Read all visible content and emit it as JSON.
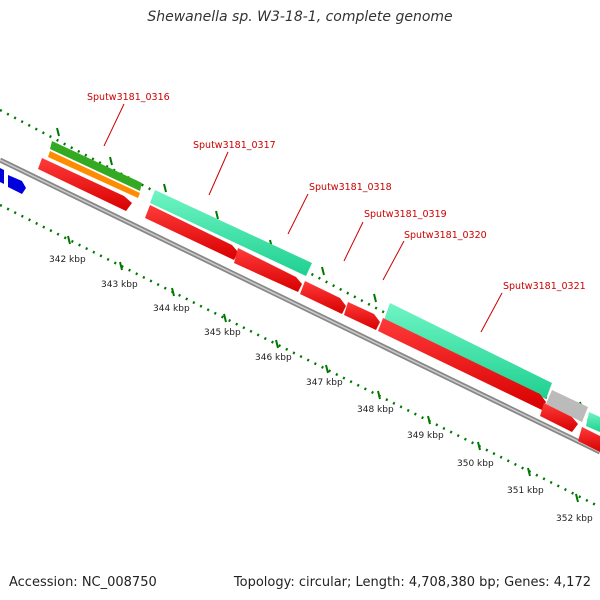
{
  "title": "Shewanella sp. W3-18-1, complete genome",
  "footer": {
    "accession": "Accession: NC_008750",
    "summary": "Topology: circular; Length: 4,708,380 bp; Genes: 4,172"
  },
  "kbp_ticks": [
    "342 kbp",
    "343 kbp",
    "344 kbp",
    "345 kbp",
    "346 kbp",
    "347 kbp",
    "348 kbp",
    "349 kbp",
    "350 kbp",
    "351 kbp",
    "352 kbp"
  ],
  "gene_labels": [
    "Sputw3181_0316",
    "Sputw3181_0317",
    "Sputw3181_0318",
    "Sputw3181_0319",
    "Sputw3181_0320",
    "Sputw3181_0321"
  ],
  "colors": {
    "cds": "#ff0000",
    "gene_cyan": "#2ee8a8",
    "gene_green": "#33aa22",
    "gene_orange": "#ff8c00",
    "blue": "#0000dd",
    "gray": "#bbbbbb",
    "label": "#cc0000",
    "ruler": "#007700"
  }
}
